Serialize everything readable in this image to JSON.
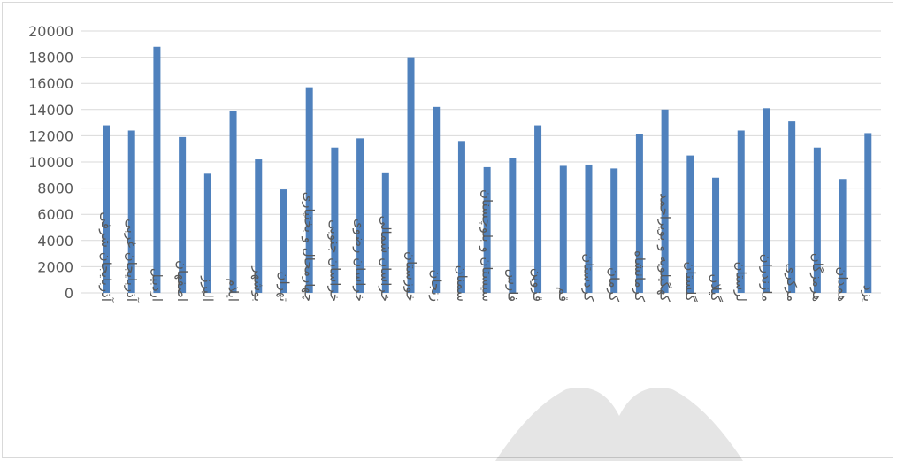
{
  "chart_data": {
    "type": "bar",
    "title": "",
    "xlabel": "",
    "ylabel": "",
    "ylim": [
      0,
      20000
    ],
    "yticks": [
      0,
      2000,
      4000,
      6000,
      8000,
      10000,
      12000,
      14000,
      16000,
      18000,
      20000
    ],
    "grid": true,
    "legend": "none",
    "bar_color": "#4f81bd",
    "categories": [
      "آذربایجان شرقی",
      "آذربایجان غربی",
      "اردبیل",
      "اصفهان",
      "البرز",
      "ایلام",
      "بوشهر",
      "تهران",
      "چهارمحال و بختیاری",
      "خراسان جنوبی",
      "خراسان رضوی",
      "خراسان شمالی",
      "خوزستان",
      "زنجان",
      "سمنان",
      "سیستان و بلوچستان",
      "فارس",
      "قزوین",
      "قم",
      "کردستان",
      "کرمان",
      "کرمانشاه",
      "کهگیلویه و بویراحمد",
      "گلستان",
      "گیلان",
      "لرستان",
      "مازندران",
      "مرکزی",
      "هرمزگان",
      "همدان",
      "یزد"
    ],
    "values": [
      12800,
      12400,
      18800,
      11900,
      9100,
      13900,
      10200,
      7900,
      15700,
      11100,
      11800,
      9200,
      18000,
      14200,
      11600,
      9600,
      10300,
      12800,
      9700,
      9800,
      9500,
      12100,
      14000,
      10500,
      8800,
      12400,
      14100,
      13100,
      11100,
      8700,
      12200
    ]
  }
}
